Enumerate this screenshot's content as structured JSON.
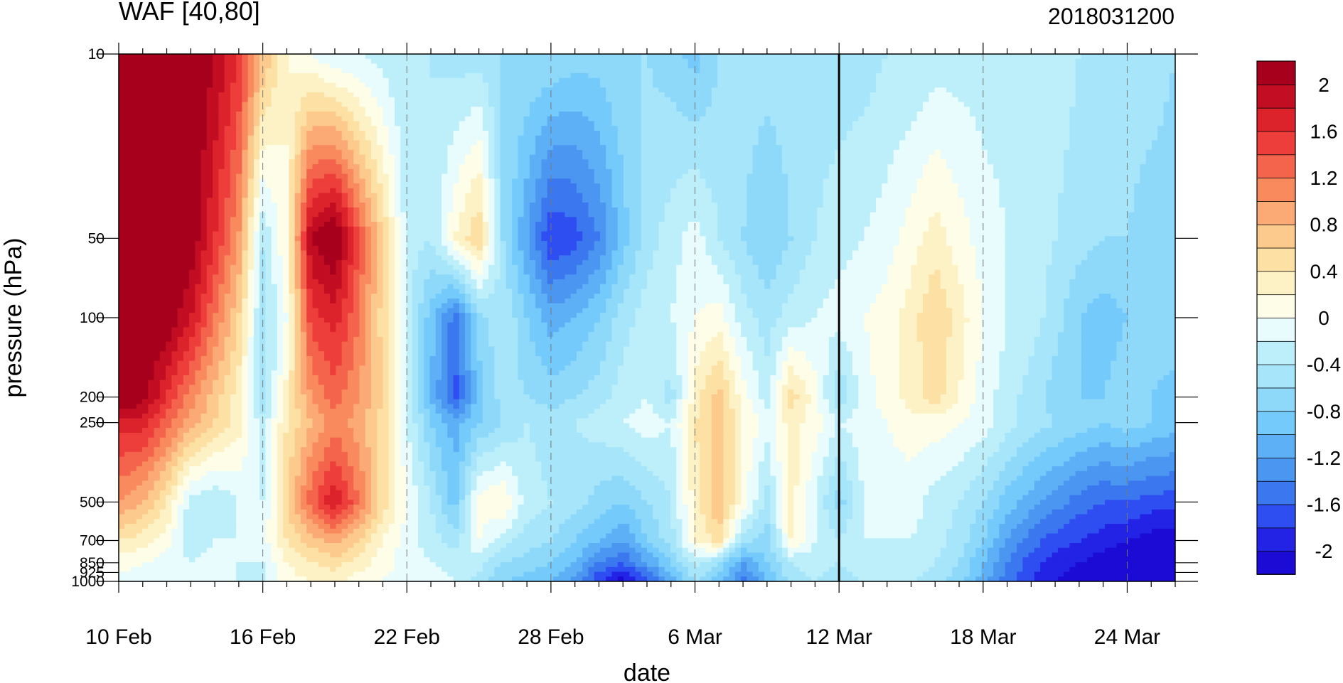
{
  "chart_data": {
    "type": "heatmap",
    "title": "WAF [40,80]",
    "subtitle": "2018031200",
    "xlabel": "date",
    "ylabel": "pressure (hPa)",
    "x_ticks": [
      "10 Feb",
      "16 Feb",
      "22 Feb",
      "28 Feb",
      "6 Mar",
      "12 Mar",
      "18 Mar",
      "24 Mar"
    ],
    "x_range": [
      "10 Feb",
      "26 Mar"
    ],
    "y_scale": "log",
    "y_ticks": [
      10,
      50,
      100,
      200,
      250,
      500,
      700,
      850,
      925,
      1000
    ],
    "ylim": [
      1000,
      10
    ],
    "analysis_line": "12 Mar",
    "x": [
      "10 Feb",
      "11 Feb",
      "12 Feb",
      "13 Feb",
      "14 Feb",
      "15 Feb",
      "16 Feb",
      "17 Feb",
      "18 Feb",
      "19 Feb",
      "20 Feb",
      "21 Feb",
      "22 Feb",
      "23 Feb",
      "24 Feb",
      "25 Feb",
      "26 Feb",
      "27 Feb",
      "28 Feb",
      "1 Mar",
      "2 Mar",
      "3 Mar",
      "4 Mar",
      "5 Mar",
      "6 Mar",
      "7 Mar",
      "8 Mar",
      "9 Mar",
      "10 Mar",
      "11 Mar",
      "12 Mar",
      "13 Mar",
      "14 Mar",
      "15 Mar",
      "16 Mar",
      "17 Mar",
      "18 Mar",
      "19 Mar",
      "20 Mar",
      "21 Mar",
      "22 Mar",
      "23 Mar",
      "24 Mar",
      "25 Mar",
      "26 Mar"
    ],
    "y": [
      10,
      50,
      100,
      200,
      250,
      500,
      700,
      850,
      1000
    ],
    "values": [
      [
        2.3,
        2.3,
        2.3,
        2.3,
        2.0,
        1.6,
        0.8,
        0.2,
        0.0,
        -0.2,
        -0.2,
        -0.3,
        -0.4,
        -0.4,
        -0.5,
        -0.5,
        -0.6,
        -0.6,
        -0.6,
        -0.7,
        -0.7,
        -0.6,
        -0.6,
        -0.7,
        -0.9,
        -0.6,
        -0.5,
        -0.5,
        -0.5,
        -0.5,
        -0.5,
        -0.5,
        -0.4,
        -0.4,
        -0.3,
        -0.3,
        -0.3,
        -0.3,
        -0.3,
        -0.3,
        -0.4,
        -0.4,
        -0.5,
        -0.5,
        -0.6
      ],
      [
        2.3,
        2.3,
        2.3,
        2.2,
        1.6,
        1.0,
        -0.4,
        0.2,
        2.0,
        2.3,
        1.4,
        0.6,
        -0.3,
        -0.4,
        0.2,
        0.6,
        -0.6,
        -1.2,
        -1.8,
        -1.7,
        -1.4,
        -0.9,
        -0.5,
        -0.3,
        -0.1,
        -0.4,
        -0.6,
        -0.8,
        -0.6,
        -0.4,
        -0.3,
        -0.2,
        -0.1,
        0.1,
        0.3,
        0.1,
        -0.1,
        -0.2,
        -0.3,
        -0.4,
        -0.5,
        -0.6,
        -0.6,
        -0.7,
        -0.7
      ],
      [
        2.3,
        2.3,
        2.2,
        1.8,
        1.2,
        0.6,
        -0.5,
        0.0,
        1.5,
        1.7,
        1.2,
        0.5,
        -0.3,
        -0.9,
        -1.5,
        -0.7,
        -0.4,
        -0.8,
        -1.1,
        -1.0,
        -0.8,
        -0.5,
        -0.3,
        -0.2,
        0.0,
        0.1,
        -0.3,
        -0.5,
        -0.3,
        -0.2,
        -0.1,
        0.0,
        0.1,
        0.3,
        0.6,
        0.3,
        0.0,
        -0.2,
        -0.3,
        -0.5,
        -0.8,
        -0.9,
        -0.8,
        -0.7,
        -0.6
      ],
      [
        2.3,
        2.1,
        1.6,
        1.1,
        0.7,
        0.3,
        -0.6,
        0.3,
        1.0,
        1.3,
        1.0,
        0.6,
        -0.2,
        -1.0,
        -1.7,
        -0.9,
        -0.5,
        -0.6,
        -0.7,
        -0.6,
        -0.5,
        -0.3,
        -0.2,
        -0.5,
        0.3,
        0.7,
        0.1,
        -0.3,
        0.5,
        0.1,
        -0.6,
        -0.1,
        0.1,
        0.3,
        0.5,
        0.2,
        -0.1,
        -0.3,
        -0.5,
        -0.7,
        -0.8,
        -0.8,
        -0.7,
        -0.8,
        -0.9
      ],
      [
        1.7,
        1.7,
        1.3,
        0.9,
        0.6,
        0.3,
        -0.3,
        0.4,
        0.8,
        1.1,
        0.9,
        0.5,
        -0.2,
        -0.8,
        -1.1,
        -0.8,
        -0.6,
        -0.4,
        -0.5,
        -0.4,
        -0.3,
        -0.2,
        -0.1,
        -0.2,
        0.4,
        0.7,
        0.2,
        -0.1,
        0.3,
        0.1,
        -0.2,
        -0.1,
        0.0,
        0.1,
        0.1,
        0.0,
        -0.1,
        -0.3,
        -0.5,
        -0.6,
        -0.7,
        -0.8,
        -0.7,
        -0.8,
        -0.9
      ],
      [
        1.0,
        0.8,
        0.4,
        -0.3,
        -0.4,
        -0.2,
        -0.2,
        0.6,
        1.3,
        1.8,
        1.2,
        0.5,
        0.0,
        -0.4,
        -0.9,
        0.1,
        0.2,
        -0.3,
        -0.4,
        -0.5,
        -0.7,
        -0.8,
        -0.6,
        -0.4,
        0.3,
        0.8,
        0.1,
        -0.5,
        0.3,
        -0.2,
        -0.7,
        -0.2,
        -0.1,
        -0.1,
        -0.3,
        -0.4,
        -0.6,
        -0.9,
        -1.1,
        -1.3,
        -1.5,
        -1.6,
        -1.6,
        -1.7,
        -1.7
      ],
      [
        0.4,
        0.3,
        0.1,
        -0.4,
        -0.2,
        -0.2,
        -0.1,
        0.4,
        0.7,
        0.9,
        0.6,
        0.2,
        -0.1,
        -0.3,
        -0.5,
        0.0,
        -0.3,
        -0.5,
        -0.6,
        -0.8,
        -1.0,
        -1.2,
        -0.8,
        -0.5,
        0.2,
        0.5,
        -0.5,
        -0.7,
        0.2,
        -0.2,
        -0.4,
        -0.2,
        -0.2,
        -0.2,
        -0.3,
        -0.5,
        -0.8,
        -1.2,
        -1.5,
        -1.7,
        -1.8,
        -1.9,
        -2.0,
        -2.1,
        -2.1
      ],
      [
        0.1,
        0.0,
        -0.1,
        -0.2,
        -0.1,
        -0.2,
        -0.2,
        0.2,
        0.4,
        0.5,
        0.3,
        0.1,
        -0.1,
        -0.2,
        -0.3,
        -0.3,
        -0.6,
        -0.7,
        -0.8,
        -1.0,
        -1.4,
        -1.6,
        -1.2,
        -0.8,
        -0.3,
        -0.6,
        -1.2,
        -0.8,
        -0.4,
        -0.3,
        -0.4,
        -0.3,
        -0.3,
        -0.3,
        -0.4,
        -0.6,
        -1.0,
        -1.4,
        -1.7,
        -1.9,
        -2.0,
        -2.1,
        -2.2,
        -2.2,
        -2.2
      ],
      [
        -0.1,
        -0.1,
        -0.2,
        -0.2,
        -0.1,
        -0.2,
        -0.3,
        0.1,
        0.2,
        0.3,
        0.1,
        0.0,
        -0.1,
        -0.1,
        -0.2,
        -0.5,
        -0.8,
        -0.9,
        -1.0,
        -1.3,
        -1.8,
        -2.1,
        -1.7,
        -1.1,
        -0.6,
        -0.9,
        -1.5,
        -1.0,
        -0.5,
        -0.4,
        -0.5,
        -0.4,
        -0.4,
        -0.4,
        -0.5,
        -0.7,
        -1.1,
        -1.5,
        -1.8,
        -2.0,
        -2.1,
        -2.2,
        -2.3,
        -2.3,
        -2.3
      ]
    ],
    "colorbar": {
      "labels": [
        2,
        1.6,
        1.2,
        0.8,
        0.4,
        0,
        -0.4,
        -0.8,
        -1.2,
        -1.6,
        -2
      ],
      "levels": [
        -2.2,
        -2.0,
        -1.8,
        -1.6,
        -1.4,
        -1.2,
        -1.0,
        -0.8,
        -0.6,
        -0.4,
        -0.2,
        0.0,
        0.2,
        0.4,
        0.6,
        0.8,
        1.0,
        1.2,
        1.4,
        1.6,
        1.8,
        2.0,
        2.2
      ],
      "colors": [
        "#1b0bd4",
        "#2323e6",
        "#2e4ef2",
        "#3b78ef",
        "#4a96f0",
        "#5eb0f6",
        "#74cafb",
        "#8ed9fa",
        "#a6e5fa",
        "#bdeffb",
        "#e8fbfd",
        "#fefee8",
        "#fdf2c6",
        "#fde0a4",
        "#fdca8d",
        "#fbaa76",
        "#f88a5e",
        "#f4644d",
        "#ee3e3b",
        "#dc232c",
        "#c20d22",
        "#a6001d"
      ]
    }
  }
}
